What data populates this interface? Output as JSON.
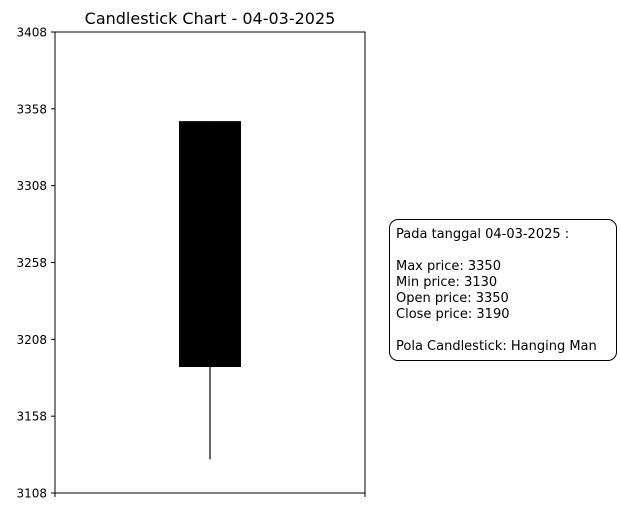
{
  "chart_data": {
    "type": "candlestick",
    "title": "Candlestick Chart - 04-03-2025",
    "xlabel": "",
    "ylabel": "",
    "ylim": [
      3108,
      3408
    ],
    "yticks": [
      "3108",
      "3158",
      "3208",
      "3258",
      "3308",
      "3358",
      "3408"
    ],
    "grid": false,
    "candles": [
      {
        "date": "04-03-2025",
        "open": 3350,
        "high": 3350,
        "low": 3130,
        "close": 3190,
        "color": "#000000"
      }
    ]
  },
  "info_box": {
    "heading": "Pada tanggal 04-03-2025 :",
    "max_price": "Max price: 3350",
    "min_price": "Min price: 3130",
    "open_price": "Open price: 3350",
    "close_price": "Close price: 3190",
    "pattern": "Pola Candlestick: Hanging Man"
  }
}
